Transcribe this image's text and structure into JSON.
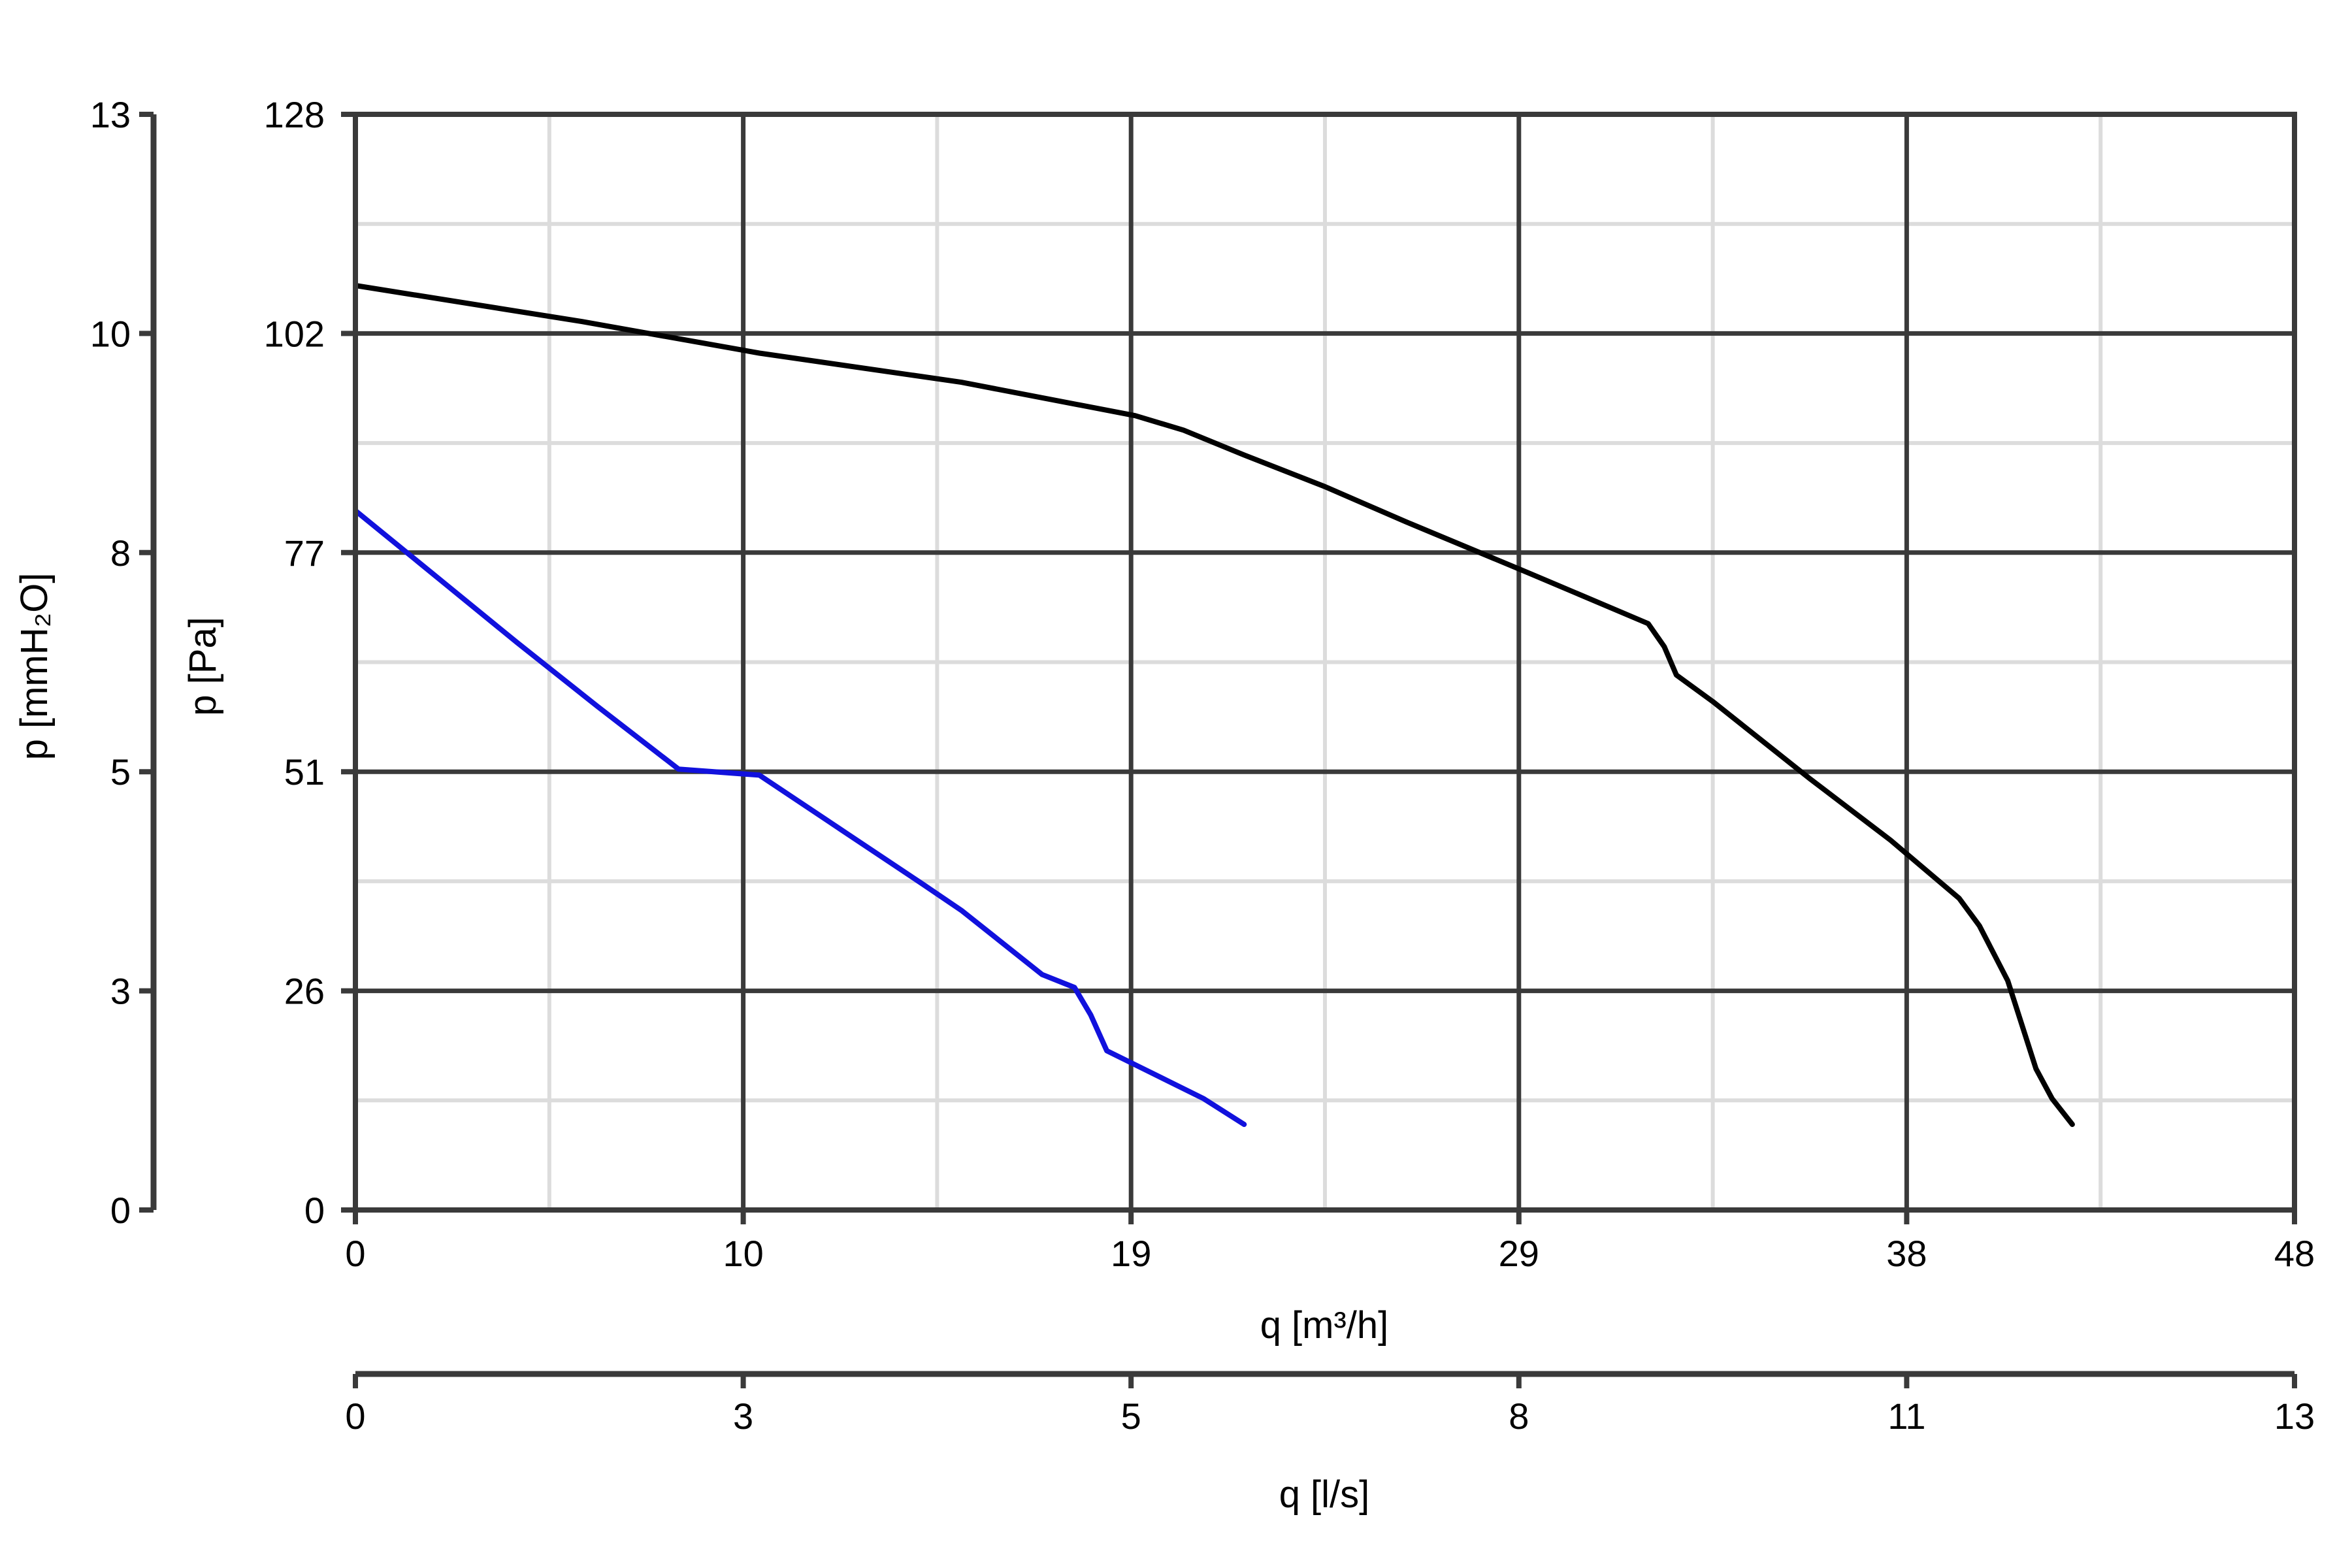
{
  "chart_data": {
    "type": "line",
    "xlabel": "q [m³/h]",
    "x2label": "q [l/s]",
    "ylabel": "p [Pa]",
    "y2label": "p [mmH₂O]",
    "xlim": [
      0,
      48
    ],
    "ylim": [
      0,
      128
    ],
    "x_ticks": [
      "0",
      "10",
      "19",
      "29",
      "38",
      "48"
    ],
    "x2_ticks": [
      "0",
      "3",
      "5",
      "8",
      "11",
      "13"
    ],
    "y_ticks": [
      "0",
      "26",
      "51",
      "77",
      "102",
      "128"
    ],
    "y2_ticks": [
      "0",
      "3",
      "5",
      "8",
      "10",
      "13"
    ],
    "grid": true,
    "series": [
      {
        "color": "#000000",
        "points": [
          [
            0,
            108
          ],
          [
            5.6,
            103.8
          ],
          [
            10,
            100.1
          ],
          [
            15,
            96.7
          ],
          [
            19.3,
            92.8
          ],
          [
            20.5,
            91.1
          ],
          [
            22,
            88.2
          ],
          [
            24,
            84.5
          ],
          [
            26,
            80.4
          ],
          [
            29,
            74.5
          ],
          [
            32,
            68.5
          ],
          [
            32.4,
            65.8
          ],
          [
            32.7,
            62.5
          ],
          [
            33.6,
            59.4
          ],
          [
            36,
            50.4
          ],
          [
            38,
            43.2
          ],
          [
            39.7,
            36.4
          ],
          [
            40.2,
            33.2
          ],
          [
            40.9,
            26.8
          ],
          [
            41.6,
            16.5
          ],
          [
            42,
            13
          ],
          [
            42.5,
            10
          ]
        ]
      },
      {
        "color": "#1111dd",
        "points": [
          [
            0,
            81.7
          ],
          [
            2,
            74
          ],
          [
            4,
            66.3
          ],
          [
            6,
            58.8
          ],
          [
            8,
            51.5
          ],
          [
            10,
            50.8
          ],
          [
            12,
            44.5
          ],
          [
            14,
            38.2
          ],
          [
            15,
            35
          ],
          [
            17,
            27.5
          ],
          [
            17.8,
            26
          ],
          [
            18.2,
            22.8
          ],
          [
            18.6,
            18.6
          ],
          [
            19.5,
            16.5
          ],
          [
            21,
            13
          ],
          [
            22,
            10
          ]
        ]
      }
    ]
  }
}
